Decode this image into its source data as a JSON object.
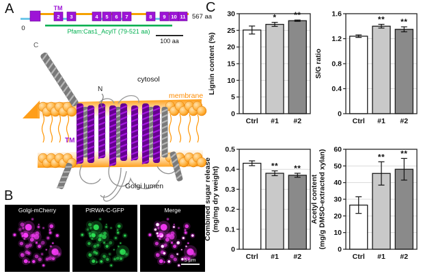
{
  "panelA": {
    "label": "A",
    "domain_diagram": {
      "tm_label": "TM",
      "start_label": "0",
      "end_label": "567 aa",
      "pfam_label": "Pfam:Cas1_AcylT (79-521 aa)",
      "scalebar_label": "100 aa",
      "tm_numbers": [
        "",
        "2",
        "3",
        "4",
        "5",
        "6",
        "7",
        "8",
        "9",
        "10",
        "11"
      ],
      "colors": {
        "tm_box": "#9d14d6",
        "cytosolic_loop": "#f5a100",
        "lumenal_loop": "#6fc8ea",
        "pfam_line": "#00b050"
      }
    },
    "structure": {
      "c_terminus_label": "C",
      "n_terminus_label": "N",
      "cytosol_label": "cytosol",
      "membrane_label": "membrane",
      "tm_label": "TM",
      "golgi_label": "Golgi lumen",
      "colors": {
        "helix_purple": "#a318dd",
        "membrane_orange": "#ff9400",
        "coil_gray": "#909090"
      }
    }
  },
  "panelB": {
    "label": "B",
    "images": [
      {
        "title": "Golgi-mCherry",
        "channel": "magenta"
      },
      {
        "title": "PtRWA-C-GFP",
        "channel": "green"
      },
      {
        "title": "Merge",
        "channel": "merge",
        "scalebar_label": "5 µm"
      }
    ],
    "colors": {
      "mcherry": "#ff3cff",
      "gfp": "#2ee655",
      "coloc": "#ffffff"
    }
  },
  "panelC": {
    "label": "C"
  },
  "chart_data": [
    {
      "type": "bar",
      "name": "lignin-content",
      "ylabel_lines": [
        "Lignin content (%)"
      ],
      "categories": [
        "Ctrl",
        "#1",
        "#2"
      ],
      "values": [
        25.1,
        26.8,
        27.9
      ],
      "errors": [
        1.2,
        0.6,
        0.2
      ],
      "significance": [
        "",
        "*",
        "**"
      ],
      "ylim": [
        0,
        30
      ],
      "ytick_step": 5,
      "bar_colors": [
        "#ffffff",
        "#c9c9c9",
        "#8a8a8a"
      ],
      "grid": true,
      "legend": "none"
    },
    {
      "type": "bar",
      "name": "sg-ratio",
      "ylabel_lines": [
        "S/G ratio"
      ],
      "categories": [
        "Ctrl",
        "#1",
        "#2"
      ],
      "values": [
        1.24,
        1.4,
        1.35
      ],
      "errors": [
        0.02,
        0.03,
        0.04
      ],
      "significance": [
        "",
        "**",
        "**"
      ],
      "ylim": [
        0,
        1.6
      ],
      "ytick_step": 0.4,
      "bar_colors": [
        "#ffffff",
        "#c9c9c9",
        "#8a8a8a"
      ],
      "grid": true,
      "legend": "none"
    },
    {
      "type": "bar",
      "name": "combined-sugar-release",
      "ylabel_lines": [
        "Combined sugar release",
        "(mg/mg dry weight)"
      ],
      "categories": [
        "Ctrl",
        "#1",
        "#2"
      ],
      "values": [
        0.43,
        0.38,
        0.37
      ],
      "errors": [
        0.012,
        0.012,
        0.01
      ],
      "significance": [
        "",
        "**",
        "**"
      ],
      "ylim": [
        0,
        0.5
      ],
      "ytick_step": 0.1,
      "bar_colors": [
        "#ffffff",
        "#c9c9c9",
        "#8a8a8a"
      ],
      "grid": true,
      "legend": "none"
    },
    {
      "type": "bar",
      "name": "acetyl-content",
      "ylabel_lines": [
        "Acetyl content",
        "(mg/g DMSO-extracted xylan)"
      ],
      "categories": [
        "Ctrl",
        "#1",
        "#2"
      ],
      "values": [
        26.5,
        45.5,
        48
      ],
      "errors": [
        5,
        7,
        6.5
      ],
      "significance": [
        "",
        "**",
        "**"
      ],
      "ylim": [
        0,
        60
      ],
      "ytick_step": 10,
      "bar_colors": [
        "#ffffff",
        "#c9c9c9",
        "#8a8a8a"
      ],
      "grid": true,
      "legend": "none"
    }
  ]
}
